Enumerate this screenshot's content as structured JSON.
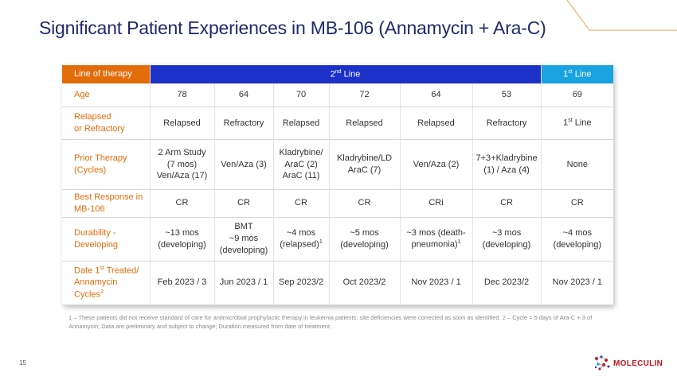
{
  "title": "Significant Patient Experiences in MB-106 (Annamycin + Ara-C)",
  "colors": {
    "orange": "#e36c0a",
    "second_line_blue": "#1c31c7",
    "first_line_blue": "#1aa3e0",
    "title_navy": "#1f2a6b",
    "logo_red": "#c0141c"
  },
  "table": {
    "header": {
      "label": "Line of therapy",
      "second_line": "2",
      "second_line_sup": "nd",
      "second_line_suffix": " Line",
      "first_line": "1",
      "first_line_sup": "st",
      "first_line_suffix": " Line"
    },
    "rows": {
      "age": {
        "label": "Age",
        "values": [
          "78",
          "64",
          "70",
          "72",
          "64",
          "53",
          "69"
        ]
      },
      "relapsed": {
        "label_line1": "Relapsed",
        "label_line2": "or Refractory",
        "values": [
          "Relapsed",
          "Refractory",
          "Relapsed",
          "Relapsed",
          "Relapsed",
          "Refractory"
        ],
        "last": "1",
        "last_sup": "st",
        "last_suffix": " Line"
      },
      "prior": {
        "label_line1": "Prior Therapy",
        "label_line2": "(Cycles)",
        "c1": [
          "2 Arm Study",
          "(7 mos)",
          "Ven/Aza (17)"
        ],
        "c2": [
          "Ven/Aza (3)"
        ],
        "c3": [
          "Kladrybine/",
          "AraC (2)",
          "AraC (11)"
        ],
        "c4": [
          "Kladrybine/LD",
          "AraC (7)"
        ],
        "c5": [
          "Ven/Aza (2)"
        ],
        "c6": [
          "7+3+Kladrybine",
          "(1) / Aza (4)"
        ],
        "c7": [
          "None"
        ]
      },
      "best": {
        "label_line1": "Best Response in",
        "label_line2": "MB-106",
        "values": [
          "CR",
          "CR",
          "CR",
          "CR",
          "CRi",
          "CR",
          "CR"
        ]
      },
      "durability": {
        "label_line1": "Durability -",
        "label_line2": "Developing",
        "c1": [
          "~13 mos",
          "(developing)"
        ],
        "c2": [
          "BMT",
          "~9 mos",
          "(developing)"
        ],
        "c3": [
          "~4 mos",
          "(relapsed)"
        ],
        "c3_sup": "1",
        "c4": [
          "~5 mos",
          "(developing)"
        ],
        "c5": [
          "~3 mos (death-",
          "pneumonia)"
        ],
        "c5_sup": "1",
        "c6": [
          "~3 mos",
          "(developing)"
        ],
        "c7": [
          "~4 mos",
          "(developing)"
        ]
      },
      "date": {
        "label_line1_a": "Date 1",
        "label_line1_sup": "st",
        "label_line1_b": " Treated/",
        "label_line2": "Annamycin Cycles",
        "label_line2_sup": "2",
        "values": [
          "Feb 2023 / 3",
          "Jun 2023 / 1",
          "Sep 2023/2",
          "Oct 2023/2",
          "Nov 2023 / 1",
          "Dec 2023/2",
          "Nov 2023 / 1"
        ]
      }
    }
  },
  "footnote": "1 – These patients did not receive standard of care for antimicrobial prophylactic therapy in leukemia patients; site deficiencies were corrected as soon as identified.  2 – Cycle = 5 days of Ara-C + 3 of Annamycin; Data are preliminary and subject to change; Duration measured from date of treatment.",
  "page_number": "15",
  "logo": {
    "text": "MOLECULIN",
    "icon": "molecule-icon"
  }
}
